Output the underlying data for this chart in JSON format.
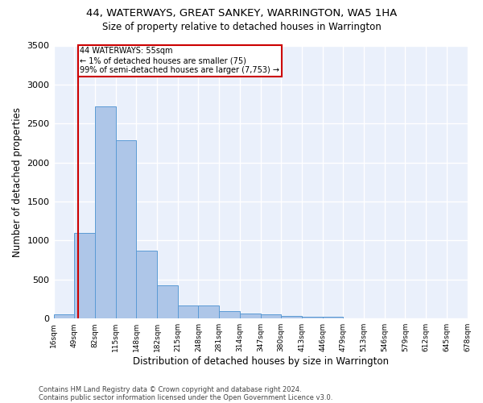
{
  "title": "44, WATERWAYS, GREAT SANKEY, WARRINGTON, WA5 1HA",
  "subtitle": "Size of property relative to detached houses in Warrington",
  "xlabel": "Distribution of detached houses by size in Warrington",
  "ylabel": "Number of detached properties",
  "annotation_line1": "44 WATERWAYS: 55sqm",
  "annotation_line2": "← 1% of detached houses are smaller (75)",
  "annotation_line3": "99% of semi-detached houses are larger (7,753) →",
  "footer_line1": "Contains HM Land Registry data © Crown copyright and database right 2024.",
  "footer_line2": "Contains public sector information licensed under the Open Government Licence v3.0.",
  "bar_color": "#aec6e8",
  "bar_edge_color": "#5b9bd5",
  "background_color": "#eaf0fb",
  "grid_color": "#ffffff",
  "red_line_color": "#cc0000",
  "annotation_box_color": "#cc0000",
  "ylim": [
    0,
    3500
  ],
  "yticks": [
    0,
    500,
    1000,
    1500,
    2000,
    2500,
    3000,
    3500
  ],
  "bar_heights": [
    50,
    1100,
    2720,
    2290,
    870,
    430,
    165,
    165,
    90,
    60,
    50,
    35,
    20,
    20,
    0,
    0,
    0,
    0,
    0,
    0
  ],
  "bin_labels": [
    "16sqm",
    "49sqm",
    "82sqm",
    "115sqm",
    "148sqm",
    "182sqm",
    "215sqm",
    "248sqm",
    "281sqm",
    "314sqm",
    "347sqm",
    "380sqm",
    "413sqm",
    "446sqm",
    "479sqm",
    "513sqm",
    "546sqm",
    "579sqm",
    "612sqm",
    "645sqm",
    "678sqm"
  ],
  "n_bins": 20,
  "red_line_x": 1.18
}
